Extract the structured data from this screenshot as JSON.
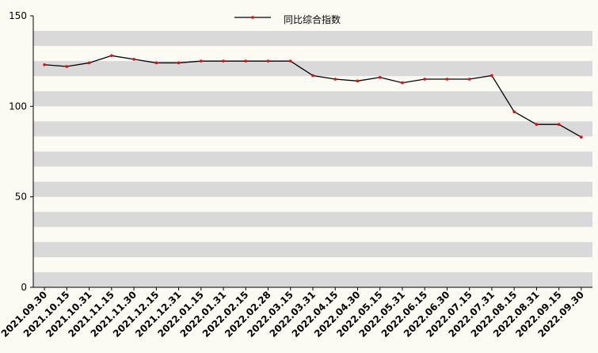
{
  "chart_data": {
    "type": "line",
    "categories": [
      "2021.09.30",
      "2021.10.15",
      "2021.10.31",
      "2021.11.15",
      "2021.11.30",
      "2021.12.15",
      "2021.12.31",
      "2022.01.15",
      "2022.01.31",
      "2022.02.15",
      "2022.02.28",
      "2022.03.15",
      "2022.03.31",
      "2022.04.15",
      "2022.04.30",
      "2022.05.15",
      "2022.05.31",
      "2022.06.15",
      "2022.06.30",
      "2022.07.15",
      "2022.07.31",
      "2022.08.15",
      "2022.08.31",
      "2022.09.15",
      "2022.09.30"
    ],
    "series": [
      {
        "name": "同比综合指数",
        "color": "#000000",
        "marker_color": "#ff0000",
        "values": [
          123,
          122,
          124,
          128,
          126,
          124,
          124,
          125,
          125,
          125,
          125,
          125,
          117,
          115,
          114,
          116,
          113,
          115,
          115,
          115,
          117,
          97,
          90,
          90,
          83
        ]
      }
    ],
    "ylim": [
      0,
      150
    ],
    "yticks": [
      0,
      50,
      100,
      150
    ],
    "legend": "top"
  }
}
